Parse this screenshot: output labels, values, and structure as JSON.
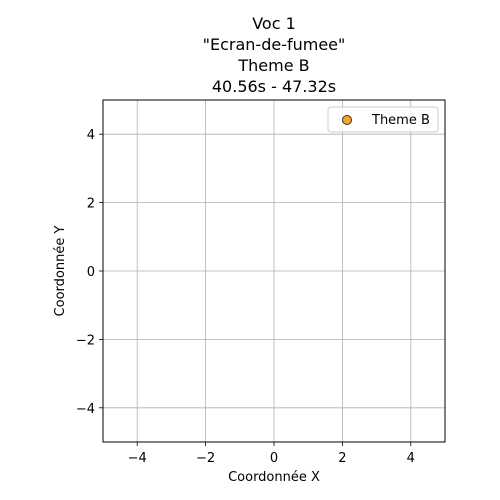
{
  "chart_data": {
    "type": "scatter",
    "title_lines": [
      "Voc 1",
      "\"Ecran-de-fumee\"",
      "Theme B",
      "40.56s - 47.32s"
    ],
    "xlabel": "Coordonnée X",
    "ylabel": "Coordonnée Y",
    "xlim": [
      -5,
      5
    ],
    "ylim": [
      -5,
      5
    ],
    "xticks": [
      -4,
      -2,
      0,
      2,
      4
    ],
    "yticks": [
      -4,
      -2,
      0,
      2,
      4
    ],
    "xtick_labels": [
      "−4",
      "−2",
      "0",
      "2",
      "4"
    ],
    "ytick_labels": [
      "−4",
      "−2",
      "0",
      "2",
      "4"
    ],
    "grid": true,
    "legend_position": "top-right",
    "series": [
      {
        "name": "Theme B",
        "color": "#f5a623",
        "edge_color": "#333333",
        "marker": "circle",
        "points": []
      }
    ]
  }
}
